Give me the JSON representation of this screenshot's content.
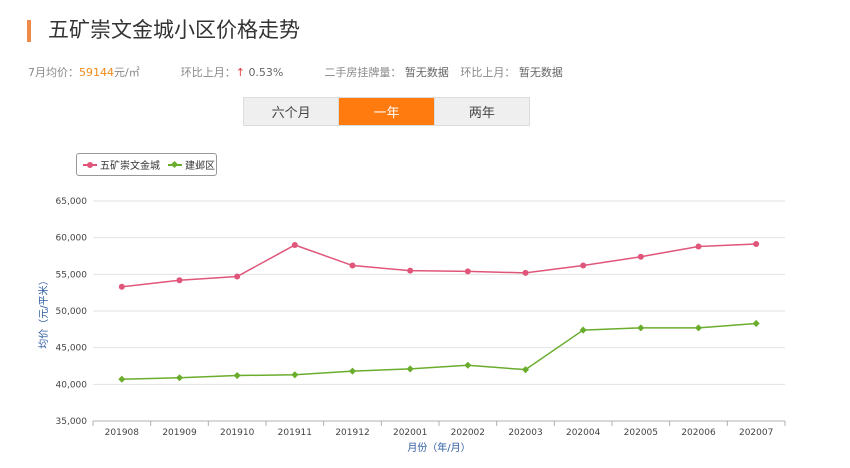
{
  "header": {
    "title": "五矿崇文金城小区价格走势"
  },
  "stats": {
    "avg_label": "7月均价：",
    "avg_price": "59144",
    "avg_unit": "元/㎡",
    "mom_label": "环比上月：",
    "mom_arrow": "↑",
    "mom_value": "0.53%",
    "listing_label": "二手房挂牌量：",
    "listing_value": "暂无数据",
    "listing_mom_label": "环比上月：",
    "listing_mom_value": "暂无数据"
  },
  "tabs": [
    {
      "label": "六个月",
      "active": false
    },
    {
      "label": "一年",
      "active": true
    },
    {
      "label": "两年",
      "active": false
    }
  ],
  "colors": {
    "accent": "#ff7a0f",
    "series1": "#e0557a",
    "series2": "#6aac2c",
    "axis_title": "#2c5aa0"
  },
  "chart_data": {
    "type": "line",
    "xlabel": "月份（年/月）",
    "ylabel": "均价（元/平米）",
    "categories": [
      "201908",
      "201909",
      "201910",
      "201911",
      "201912",
      "202001",
      "202002",
      "202003",
      "202004",
      "202005",
      "202006",
      "202007"
    ],
    "ylim": [
      35000,
      65000
    ],
    "yticks": [
      35000,
      40000,
      45000,
      50000,
      55000,
      60000,
      65000
    ],
    "ytick_labels": [
      "35,000",
      "40,000",
      "45,000",
      "50,000",
      "55,000",
      "60,000",
      "65,000"
    ],
    "grid": true,
    "legend_position": "top-left",
    "series": [
      {
        "name": "五矿崇文金城",
        "marker": "circle",
        "color": "#e0557a",
        "values": [
          53300,
          54200,
          54700,
          59000,
          56200,
          55500,
          55400,
          55200,
          56200,
          57400,
          58800,
          59144
        ]
      },
      {
        "name": "建邺区",
        "marker": "diamond",
        "color": "#6aac2c",
        "values": [
          40700,
          40900,
          41200,
          41300,
          41800,
          42100,
          42600,
          42000,
          47400,
          47700,
          47700,
          48300
        ]
      }
    ]
  }
}
